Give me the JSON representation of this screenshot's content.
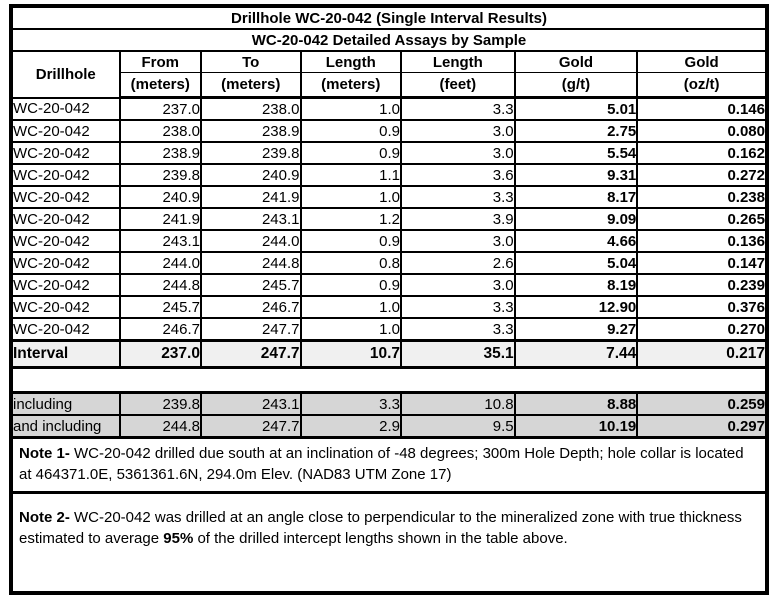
{
  "title": "Drillhole WC-20-042 (Single Interval Results)",
  "subtitle": "WC-20-042 Detailed Assays by Sample",
  "columns": {
    "drillhole_label": "Drillhole",
    "headers": [
      {
        "line1": "From",
        "line2": "(meters)"
      },
      {
        "line1": "To",
        "line2": "(meters)"
      },
      {
        "line1": "Length",
        "line2": "(meters)"
      },
      {
        "line1": "Length",
        "line2": "(feet)"
      },
      {
        "line1": "Gold",
        "line2": "(g/t)"
      },
      {
        "line1": "Gold",
        "line2": "(oz/t)"
      }
    ]
  },
  "rows": [
    {
      "drillhole": "WC-20-042",
      "from": "237.0",
      "to": "238.0",
      "length_m": "1.0",
      "length_ft": "3.3",
      "gold_gt": "5.01",
      "gold_ozt": "0.146"
    },
    {
      "drillhole": "WC-20-042",
      "from": "238.0",
      "to": "238.9",
      "length_m": "0.9",
      "length_ft": "3.0",
      "gold_gt": "2.75",
      "gold_ozt": "0.080"
    },
    {
      "drillhole": "WC-20-042",
      "from": "238.9",
      "to": "239.8",
      "length_m": "0.9",
      "length_ft": "3.0",
      "gold_gt": "5.54",
      "gold_ozt": "0.162"
    },
    {
      "drillhole": "WC-20-042",
      "from": "239.8",
      "to": "240.9",
      "length_m": "1.1",
      "length_ft": "3.6",
      "gold_gt": "9.31",
      "gold_ozt": "0.272"
    },
    {
      "drillhole": "WC-20-042",
      "from": "240.9",
      "to": "241.9",
      "length_m": "1.0",
      "length_ft": "3.3",
      "gold_gt": "8.17",
      "gold_ozt": "0.238"
    },
    {
      "drillhole": "WC-20-042",
      "from": "241.9",
      "to": "243.1",
      "length_m": "1.2",
      "length_ft": "3.9",
      "gold_gt": "9.09",
      "gold_ozt": "0.265"
    },
    {
      "drillhole": "WC-20-042",
      "from": "243.1",
      "to": "244.0",
      "length_m": "0.9",
      "length_ft": "3.0",
      "gold_gt": "4.66",
      "gold_ozt": "0.136"
    },
    {
      "drillhole": "WC-20-042",
      "from": "244.0",
      "to": "244.8",
      "length_m": "0.8",
      "length_ft": "2.6",
      "gold_gt": "5.04",
      "gold_ozt": "0.147"
    },
    {
      "drillhole": "WC-20-042",
      "from": "244.8",
      "to": "245.7",
      "length_m": "0.9",
      "length_ft": "3.0",
      "gold_gt": "8.19",
      "gold_ozt": "0.239"
    },
    {
      "drillhole": "WC-20-042",
      "from": "245.7",
      "to": "246.7",
      "length_m": "1.0",
      "length_ft": "3.3",
      "gold_gt": "12.90",
      "gold_ozt": "0.376"
    },
    {
      "drillhole": "WC-20-042",
      "from": "246.7",
      "to": "247.7",
      "length_m": "1.0",
      "length_ft": "3.3",
      "gold_gt": "9.27",
      "gold_ozt": "0.270"
    }
  ],
  "interval_row": {
    "label": "Interval",
    "from": "237.0",
    "to": "247.7",
    "length_m": "10.7",
    "length_ft": "35.1",
    "gold_gt": "7.44",
    "gold_ozt": "0.217"
  },
  "highlight_rows": [
    {
      "label": "including",
      "from": "239.8",
      "to": "243.1",
      "length_m": "3.3",
      "length_ft": "10.8",
      "gold_gt": "8.88",
      "gold_ozt": "0.259"
    },
    {
      "label": "and including",
      "from": "244.8",
      "to": "247.7",
      "length_m": "2.9",
      "length_ft": "9.5",
      "gold_gt": "10.19",
      "gold_ozt": "0.297"
    }
  ],
  "notes": {
    "note1_label": "Note 1-",
    "note1_text": "  WC-20-042 drilled due south at an inclination of -48 degrees; 300m Hole Depth; hole collar is located at 464371.0E, 5361361.6N, 294.0m Elev. (NAD83 UTM Zone 17)",
    "note2_label": "Note 2-",
    "note2_text_pre": "  WC-20-042 was drilled at an angle close to perpendicular to the mineralized zone with true thickness estimated to average ",
    "note2_text_bold": "95%",
    "note2_text_post": " of the drilled intercept lengths shown in the table above."
  },
  "colors": {
    "border": "#000000",
    "interval_bg": "#f0f0f0",
    "highlight_bg": "#d6d6d6",
    "background": "#ffffff"
  }
}
